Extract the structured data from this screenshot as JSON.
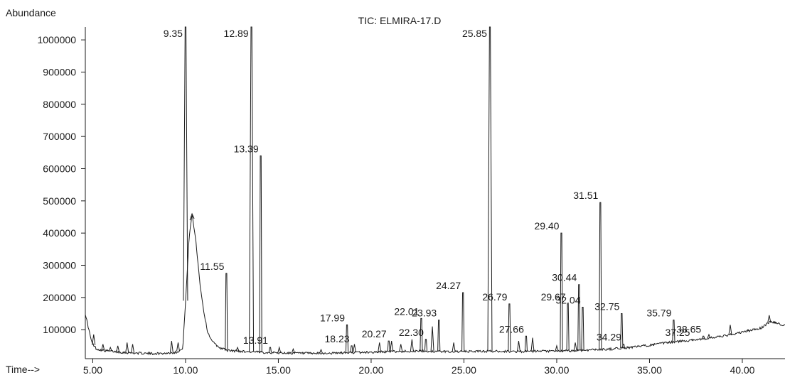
{
  "chart_data": {
    "type": "line",
    "title": "TIC: ELMIRA-17.D",
    "ylabel": "Abundance",
    "xlabel": "Time-->",
    "xlim": [
      4.6,
      42.3
    ],
    "ylim": [
      10000,
      1040000
    ],
    "x_ticks": [
      "5.00",
      "10.00",
      "15.00",
      "20.00",
      "25.00",
      "30.00",
      "35.00",
      "40.00"
    ],
    "y_ticks": [
      "100000",
      "200000",
      "300000",
      "400000",
      "500000",
      "600000",
      "700000",
      "800000",
      "900000",
      "1000000"
    ],
    "grid": false,
    "colors": {
      "trace": "#1a1a1a",
      "axis": "#1a1a1a"
    },
    "peaks": [
      {
        "label": "9.35",
        "x": 10.0,
        "y": 1040000
      },
      {
        "label": "11.55",
        "x": 12.2,
        "y": 275000
      },
      {
        "label": "12.89",
        "x": 13.55,
        "y": 1040000
      },
      {
        "label": "13.39",
        "x": 14.05,
        "y": 640000
      },
      {
        "label": "13.91",
        "x": 14.56,
        "y": 45000
      },
      {
        "label": "17.99",
        "x": 18.7,
        "y": 115000
      },
      {
        "label": "18.23",
        "x": 18.95,
        "y": 50000
      },
      {
        "label": "20.27",
        "x": 20.95,
        "y": 65000
      },
      {
        "label": "22.01",
        "x": 22.7,
        "y": 135000
      },
      {
        "label": "22.30",
        "x": 22.95,
        "y": 70000
      },
      {
        "label": "23.93",
        "x": 23.65,
        "y": 130000
      },
      {
        "label": "24.27",
        "x": 24.95,
        "y": 215000
      },
      {
        "label": "25.85",
        "x": 26.4,
        "y": 1040000
      },
      {
        "label": "26.79",
        "x": 27.45,
        "y": 180000
      },
      {
        "label": "27.66",
        "x": 28.35,
        "y": 80000
      },
      {
        "label": "29.40",
        "x": 30.25,
        "y": 400000
      },
      {
        "label": "29.67",
        "x": 30.6,
        "y": 180000
      },
      {
        "label": "30.44",
        "x": 31.2,
        "y": 240000
      },
      {
        "label": "31.51",
        "x": 32.35,
        "y": 495000
      },
      {
        "label": "32.04",
        "x": 31.4,
        "y": 170000
      },
      {
        "label": "32.75",
        "x": 33.5,
        "y": 150000
      },
      {
        "label": "34.29",
        "x": 33.6,
        "y": 55000
      },
      {
        "label": "35.79",
        "x": 36.3,
        "y": 130000
      },
      {
        "label": "37.25",
        "x": 37.3,
        "y": 70000
      },
      {
        "label": "38.65",
        "x": 37.9,
        "y": 80000
      }
    ],
    "minor_peaks": [
      {
        "x": 5.05,
        "y": 85000
      },
      {
        "x": 5.55,
        "y": 55000
      },
      {
        "x": 5.95,
        "y": 45000
      },
      {
        "x": 6.35,
        "y": 50000
      },
      {
        "x": 6.85,
        "y": 60000
      },
      {
        "x": 7.15,
        "y": 55000
      },
      {
        "x": 9.25,
        "y": 65000
      },
      {
        "x": 9.6,
        "y": 60000
      },
      {
        "x": 12.8,
        "y": 45000
      },
      {
        "x": 15.05,
        "y": 45000
      },
      {
        "x": 15.8,
        "y": 40000
      },
      {
        "x": 17.3,
        "y": 38000
      },
      {
        "x": 19.1,
        "y": 55000
      },
      {
        "x": 20.45,
        "y": 60000
      },
      {
        "x": 21.1,
        "y": 65000
      },
      {
        "x": 21.6,
        "y": 55000
      },
      {
        "x": 22.2,
        "y": 70000
      },
      {
        "x": 23.3,
        "y": 110000
      },
      {
        "x": 24.45,
        "y": 60000
      },
      {
        "x": 27.95,
        "y": 65000
      },
      {
        "x": 28.7,
        "y": 75000
      },
      {
        "x": 30.0,
        "y": 50000
      },
      {
        "x": 31.0,
        "y": 60000
      },
      {
        "x": 35.2,
        "y": 55000
      },
      {
        "x": 38.2,
        "y": 85000
      },
      {
        "x": 39.35,
        "y": 115000
      },
      {
        "x": 40.3,
        "y": 100000
      },
      {
        "x": 41.45,
        "y": 145000
      },
      {
        "x": 41.75,
        "y": 125000
      }
    ],
    "hump": {
      "x": 10.35,
      "y": 460000
    },
    "series": [
      {
        "values": [
          [
            4.6,
            150000
          ],
          [
            4.75,
            110000
          ],
          [
            4.95,
            60000
          ],
          [
            5.2,
            40000
          ],
          [
            5.6,
            35000
          ],
          [
            6.0,
            33000
          ],
          [
            6.5,
            30000
          ],
          [
            7.0,
            28000
          ],
          [
            7.5,
            27000
          ],
          [
            8.0,
            26000
          ],
          [
            8.5,
            26000
          ],
          [
            9.0,
            27000
          ],
          [
            9.5,
            30000
          ],
          [
            9.85,
            40000
          ],
          [
            10.2,
            390000
          ],
          [
            10.35,
            460000
          ],
          [
            10.55,
            380000
          ],
          [
            10.8,
            230000
          ],
          [
            11.0,
            150000
          ],
          [
            11.2,
            90000
          ],
          [
            11.5,
            60000
          ],
          [
            11.8,
            45000
          ],
          [
            12.3,
            35000
          ],
          [
            13.0,
            33000
          ],
          [
            14.0,
            30000
          ],
          [
            15.0,
            28000
          ],
          [
            16.0,
            27000
          ],
          [
            17.0,
            26000
          ],
          [
            18.0,
            27000
          ],
          [
            19.0,
            29000
          ],
          [
            20.0,
            30000
          ],
          [
            21.0,
            32000
          ],
          [
            22.0,
            33000
          ],
          [
            23.0,
            33000
          ],
          [
            24.0,
            32000
          ],
          [
            25.0,
            32000
          ],
          [
            26.0,
            33000
          ],
          [
            27.0,
            33000
          ],
          [
            28.0,
            32000
          ],
          [
            29.0,
            33000
          ],
          [
            30.0,
            33000
          ],
          [
            31.0,
            35000
          ],
          [
            32.0,
            38000
          ],
          [
            33.0,
            40000
          ],
          [
            34.0,
            45000
          ],
          [
            35.0,
            52000
          ],
          [
            36.0,
            60000
          ],
          [
            37.0,
            66000
          ],
          [
            38.0,
            72000
          ],
          [
            39.0,
            80000
          ],
          [
            40.0,
            92000
          ],
          [
            41.0,
            105000
          ],
          [
            41.5,
            125000
          ],
          [
            42.0,
            118000
          ],
          [
            42.3,
            112000
          ]
        ]
      }
    ]
  }
}
